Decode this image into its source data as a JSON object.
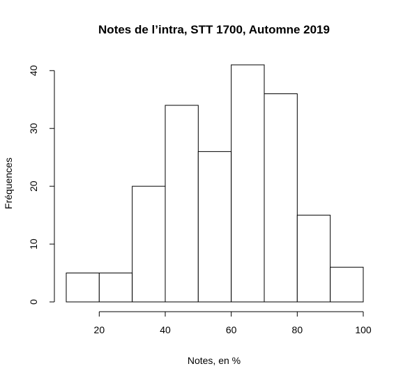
{
  "chart_data": {
    "type": "bar",
    "subtype": "histogram",
    "title": "Notes de l’intra, STT 1700, Automne 2019",
    "xlabel": "Notes, en %",
    "ylabel": "Fréquences",
    "bins": [
      [
        10,
        20
      ],
      [
        20,
        30
      ],
      [
        30,
        40
      ],
      [
        40,
        50
      ],
      [
        50,
        60
      ],
      [
        60,
        70
      ],
      [
        70,
        80
      ],
      [
        80,
        90
      ],
      [
        90,
        100
      ]
    ],
    "values": [
      5,
      5,
      20,
      34,
      26,
      41,
      36,
      15,
      6
    ],
    "xlim": [
      10,
      100
    ],
    "ylim": [
      0,
      41
    ],
    "xticks": [
      20,
      40,
      60,
      80,
      100
    ],
    "yticks": [
      0,
      10,
      20,
      30,
      40
    ],
    "grid": false,
    "legend": "none",
    "bar_fill": "#ffffff",
    "bar_stroke": "#000000"
  }
}
